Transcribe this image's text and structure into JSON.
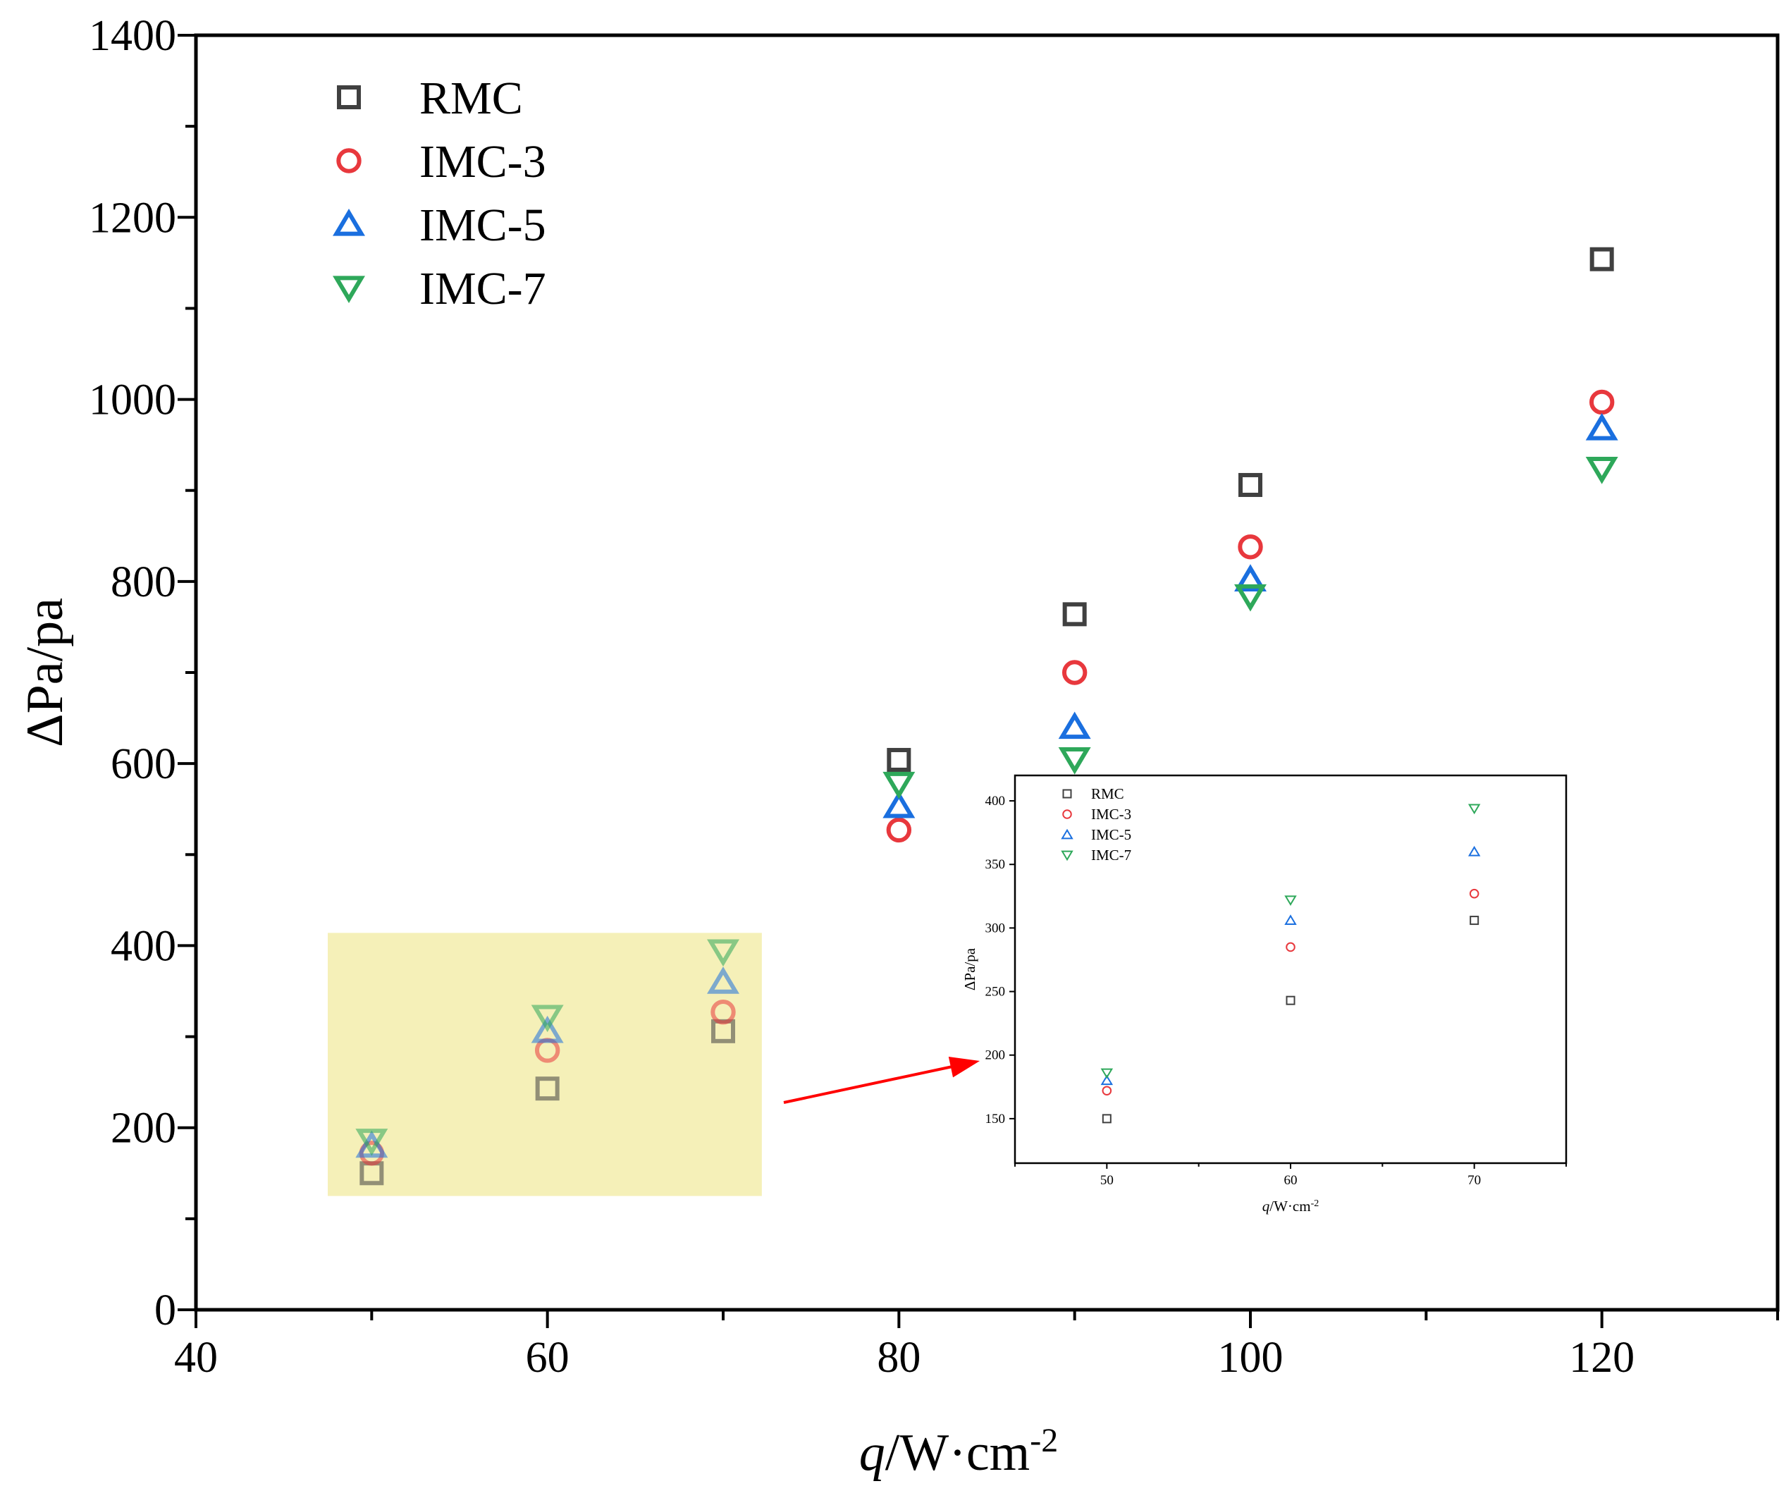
{
  "chart_data": [
    {
      "type": "scatter",
      "title": "",
      "xlabel_italic": "q",
      "xlabel_rest": "/W·cm",
      "xlabel_sup": "-2",
      "ylabel": "ΔPa/pa",
      "xlim": [
        40,
        130
      ],
      "ylim": [
        0,
        1400
      ],
      "x_ticks": [
        40,
        60,
        80,
        100,
        120
      ],
      "y_ticks": [
        0,
        200,
        400,
        600,
        800,
        1000,
        1200,
        1400
      ],
      "x": [
        50,
        60,
        70,
        80,
        90,
        100,
        120
      ],
      "series": [
        {
          "name": "RMC",
          "marker": "square",
          "color": "#404040",
          "values": [
            150,
            243,
            306,
            604,
            764,
            906,
            1154
          ]
        },
        {
          "name": "IMC-3",
          "marker": "circle",
          "color": "#e8383d",
          "values": [
            172,
            285,
            327,
            527,
            700,
            838,
            997
          ]
        },
        {
          "name": "IMC-5",
          "marker": "triangle-up",
          "color": "#1a6fdf",
          "values": [
            180,
            306,
            360,
            553,
            640,
            802,
            968
          ]
        },
        {
          "name": "IMC-7",
          "marker": "triangle-down",
          "color": "#2ea85a",
          "values": [
            186,
            322,
            394,
            578,
            605,
            784,
            924
          ]
        }
      ],
      "highlight_box": {
        "x": [
          47.5,
          72.2
        ],
        "y": [
          125,
          414
        ],
        "color": "#f5f0b8"
      },
      "legend_position": "top-left"
    },
    {
      "type": "scatter",
      "role": "inset",
      "xlabel_italic": "q",
      "xlabel_rest": "/W·cm",
      "xlabel_sup": "-2",
      "ylabel": "ΔPa/pa",
      "xlim": [
        45,
        75
      ],
      "ylim": [
        115,
        420
      ],
      "x_ticks": [
        50,
        60,
        70
      ],
      "y_ticks": [
        150,
        200,
        250,
        300,
        350,
        400
      ],
      "x": [
        50,
        60,
        70
      ],
      "series": [
        {
          "name": "RMC",
          "marker": "square",
          "color": "#404040",
          "values": [
            150,
            243,
            306
          ]
        },
        {
          "name": "IMC-3",
          "marker": "circle",
          "color": "#e8383d",
          "values": [
            172,
            285,
            327
          ]
        },
        {
          "name": "IMC-5",
          "marker": "triangle-up",
          "color": "#1a6fdf",
          "values": [
            180,
            306,
            360
          ]
        },
        {
          "name": "IMC-7",
          "marker": "triangle-down",
          "color": "#2ea85a",
          "values": [
            186,
            322,
            394
          ]
        }
      ],
      "legend_position": "top-left"
    }
  ],
  "annotation": {
    "arrow_color": "#ff0000"
  }
}
